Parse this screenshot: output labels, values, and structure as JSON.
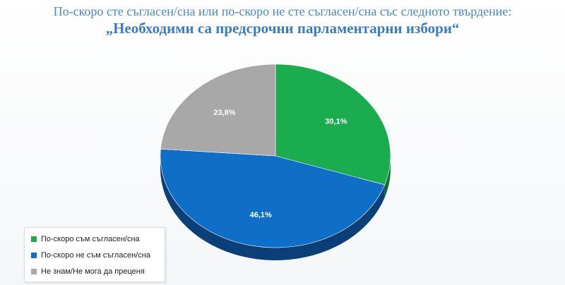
{
  "title": {
    "line1": "По-скоро сте съгласен/сна или по-скоро не сте съгласен/сна със следното твърдение:",
    "line2": "„Необходими са предсрочни парламентарни избори“"
  },
  "colors": {
    "agree": "#1aac4e",
    "disagree": "#0f6fc6",
    "unknown": "#a8a8a8",
    "agree_side": "#0e6d30",
    "disagree_side": "#0a3f77",
    "unknown_side": "#6c6c6c"
  },
  "chart_data": {
    "type": "pie",
    "title": "По-скоро сте съгласен/сна или по-скоро не сте съгласен/сна със следното твърдение: „Необходими са предсрочни парламентарни избори“",
    "categories": [
      "По-скоро съм съгласен/сна",
      "По-скоро не съм съгласен/сна",
      "Не знам/Не мога да преценя"
    ],
    "values": [
      30.1,
      46.1,
      23.8
    ],
    "labels": [
      "30,1%",
      "46,1%",
      "23,8%"
    ],
    "legend_position": "bottom-left",
    "style": "3d"
  }
}
